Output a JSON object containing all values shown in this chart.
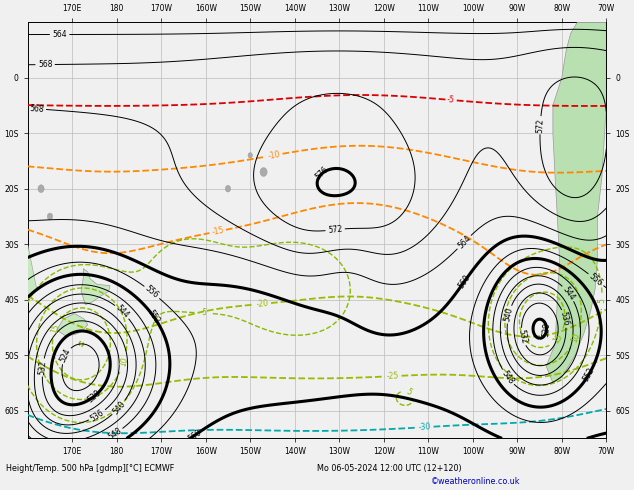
{
  "bottom_label": "Height/Temp. 500 hPa [gdmp][°C] ECMWF",
  "date_label": "Mo 06-05-2024 12:00 UTC (12+120)",
  "credit": "©weatheronline.co.uk",
  "bg_color": "#f0f0f0",
  "ocean_color": "#f0f0f0",
  "land_color": "#c8e8c0",
  "land_color_sa": "#b8e0b0",
  "grid_color": "#bbbbbb",
  "fig_width": 6.34,
  "fig_height": 4.9,
  "dpi": 100,
  "xlim": [
    160,
    290
  ],
  "ylim": [
    -65,
    10
  ],
  "x_ticks": [
    170,
    180,
    190,
    200,
    210,
    220,
    230,
    240,
    250,
    260,
    270,
    280,
    290
  ],
  "x_labels": [
    "170E",
    "180",
    "170W",
    "160W",
    "150W",
    "140W",
    "130W",
    "120W",
    "110W",
    "100W",
    "90W",
    "80W",
    "70W"
  ],
  "y_ticks": [
    -60,
    -50,
    -40,
    -30,
    -20,
    -10,
    0
  ],
  "y_labels": [
    "60S",
    "50S",
    "40S",
    "30S",
    "20S",
    "10S",
    "0"
  ]
}
